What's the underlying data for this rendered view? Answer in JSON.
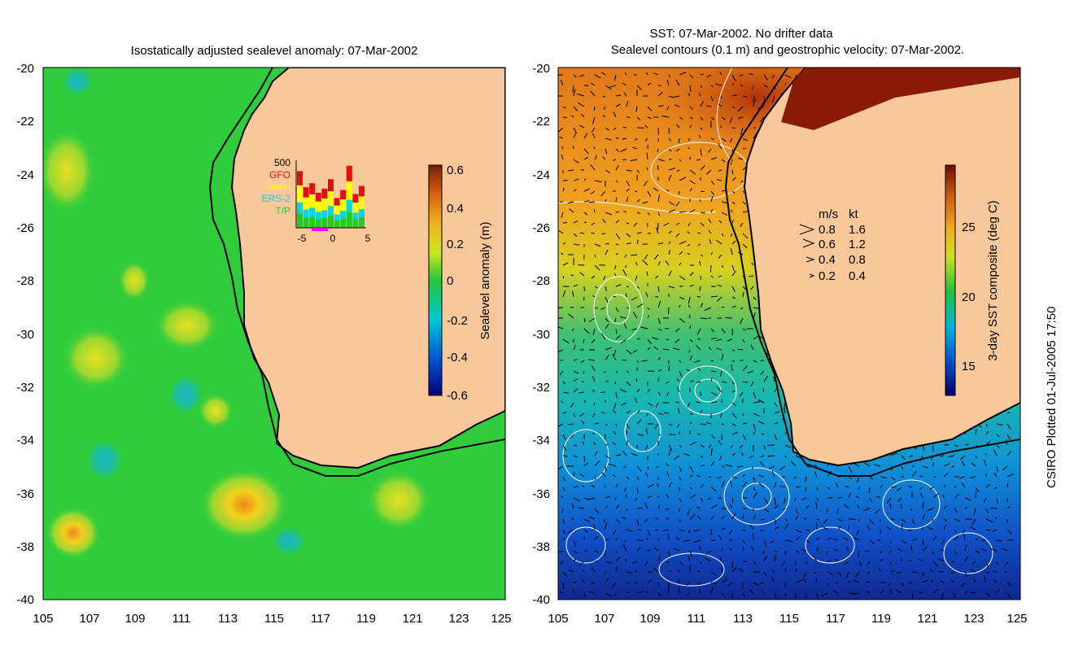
{
  "left_panel": {
    "title": "Isostatically adjusted sealevel anomaly: 07-Mar-2002",
    "x_ticks": [
      "105",
      "107",
      "109",
      "111",
      "113",
      "115",
      "117",
      "119",
      "121",
      "123",
      "125"
    ],
    "y_ticks": [
      "-20",
      "-22",
      "-24",
      "-26",
      "-28",
      "-30",
      "-32",
      "-34",
      "-36",
      "-38",
      "-40"
    ],
    "colorbar": {
      "label": "Sealevel anomaly (m)",
      "ticks": [
        "0.6",
        "0.4",
        "0.2",
        "0",
        "-0.2",
        "-0.4",
        "-0.6"
      ]
    },
    "inset": {
      "top_label": "500",
      "legend": [
        {
          "name": "GFO",
          "color": "#e01010"
        },
        {
          "name": "Jason",
          "color": "#ffff00"
        },
        {
          "name": "ERS-2",
          "color": "#00d8e8"
        },
        {
          "name": "T/P",
          "color": "#22cc22"
        }
      ],
      "x_ticks": [
        "-5",
        "0",
        "5"
      ],
      "bar_totals": [
        420,
        300,
        330,
        260,
        290,
        360,
        220,
        280,
        460,
        250,
        310
      ]
    }
  },
  "right_panel": {
    "title_line1": "SST: 07-Mar-2002. No drifter data",
    "title_line2": "Sealevel contours (0.1 m) and geostrophic velocity: 07-Mar-2002.",
    "x_ticks": [
      "105",
      "107",
      "109",
      "111",
      "113",
      "115",
      "117",
      "119",
      "121",
      "123",
      "125"
    ],
    "y_ticks": [
      "-20",
      "-22",
      "-24",
      "-26",
      "-28",
      "-30",
      "-32",
      "-34",
      "-36",
      "-38",
      "-40"
    ],
    "colorbar": {
      "label": "3-day SST composite (deg C)",
      "ticks": [
        "25",
        "20",
        "15"
      ]
    },
    "speed_legend": {
      "header_ms": "m/s",
      "header_kt": "kt",
      "rows": [
        {
          "ms": "0.8",
          "kt": "1.6"
        },
        {
          "ms": "0.6",
          "kt": "1.2"
        },
        {
          "ms": "0.4",
          "kt": "0.8"
        },
        {
          "ms": "0.2",
          "kt": "0.4"
        }
      ]
    }
  },
  "footer": {
    "credit": "CSIRO Plotted 01-Jul-2005 17:50"
  },
  "colors": {
    "land": "#f9c89a",
    "sla_background": "#2fcc3c",
    "coast": "#000000"
  }
}
